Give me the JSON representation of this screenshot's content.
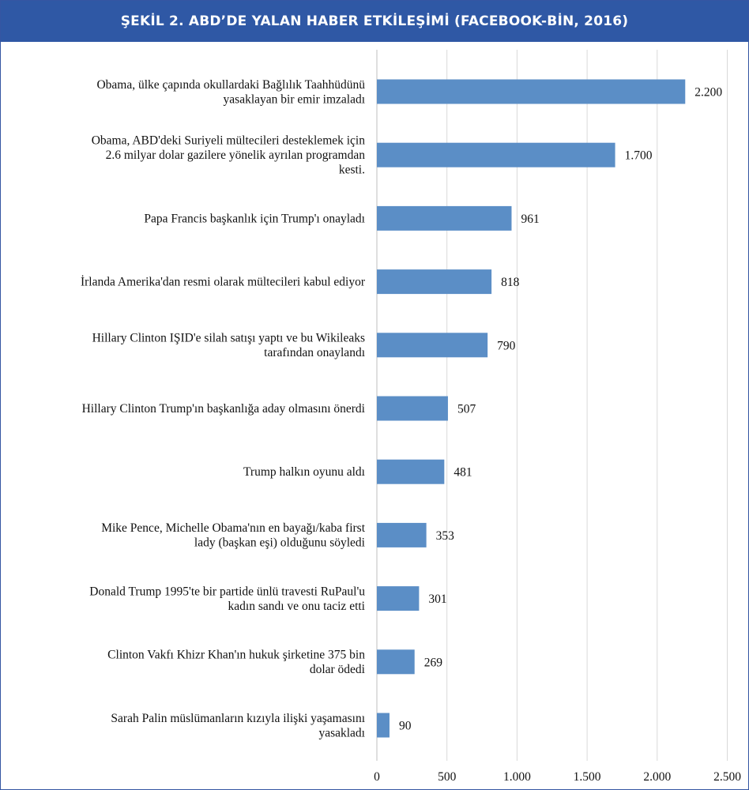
{
  "chart_data": {
    "type": "bar",
    "orientation": "horizontal",
    "title": "ŞEKİL 2. ABD’DE YALAN HABER ETKİLEŞİMİ (FACEBOOK-BİN, 2016)",
    "categories": [
      [
        "Obama, ülke çapında okullardaki Bağlılık Taahhüdünü",
        "yasaklayan bir emir imzaladı"
      ],
      [
        "Obama, ABD'deki Suriyeli mültecileri desteklemek için",
        "2.6 milyar dolar gazilere yönelik ayrılan programdan",
        "kesti."
      ],
      [
        "Papa Francis başkanlık için Trump'ı onayladı"
      ],
      [
        "İrlanda Amerika'dan resmi olarak mültecileri kabul ediyor"
      ],
      [
        "Hillary Clinton IŞID'e silah satışı yaptı ve bu Wikileaks",
        "tarafından onaylandı"
      ],
      [
        "Hillary Clinton Trump'ın başkanlığa aday olmasını önerdi"
      ],
      [
        "Trump halkın oyunu aldı"
      ],
      [
        "Mike Pence, Michelle Obama'nın en bayağı/kaba first",
        "lady (başkan eşi) olduğunu söyledi"
      ],
      [
        "Donald Trump 1995'te bir partide ünlü travesti RuPaul'u",
        "kadın sandı ve onu taciz etti"
      ],
      [
        "Clinton Vakfı Khizr Khan'ın hukuk şirketine 375 bin",
        "dolar ödedi"
      ],
      [
        "Sarah Palin müslümanların kızıyla ilişki yaşamasını",
        "yasakladı"
      ]
    ],
    "values": [
      2200,
      1700,
      961,
      818,
      790,
      507,
      481,
      353,
      301,
      269,
      90
    ],
    "value_labels": [
      "2.200",
      "1.700",
      "961",
      "818",
      "790",
      "507",
      "481",
      "353",
      "301",
      "269",
      "90"
    ],
    "xlim": [
      0,
      2500
    ],
    "xticks": [
      0,
      500,
      1000,
      1500,
      2000,
      2500
    ],
    "xtick_labels": [
      "0",
      "500",
      "1.000",
      "1.500",
      "2.000",
      "2.500"
    ],
    "grid": "vertical",
    "bar_color": "#5b8ec6",
    "title_bar_color": "#2f58a5",
    "grid_color": "#d9d9d9"
  }
}
